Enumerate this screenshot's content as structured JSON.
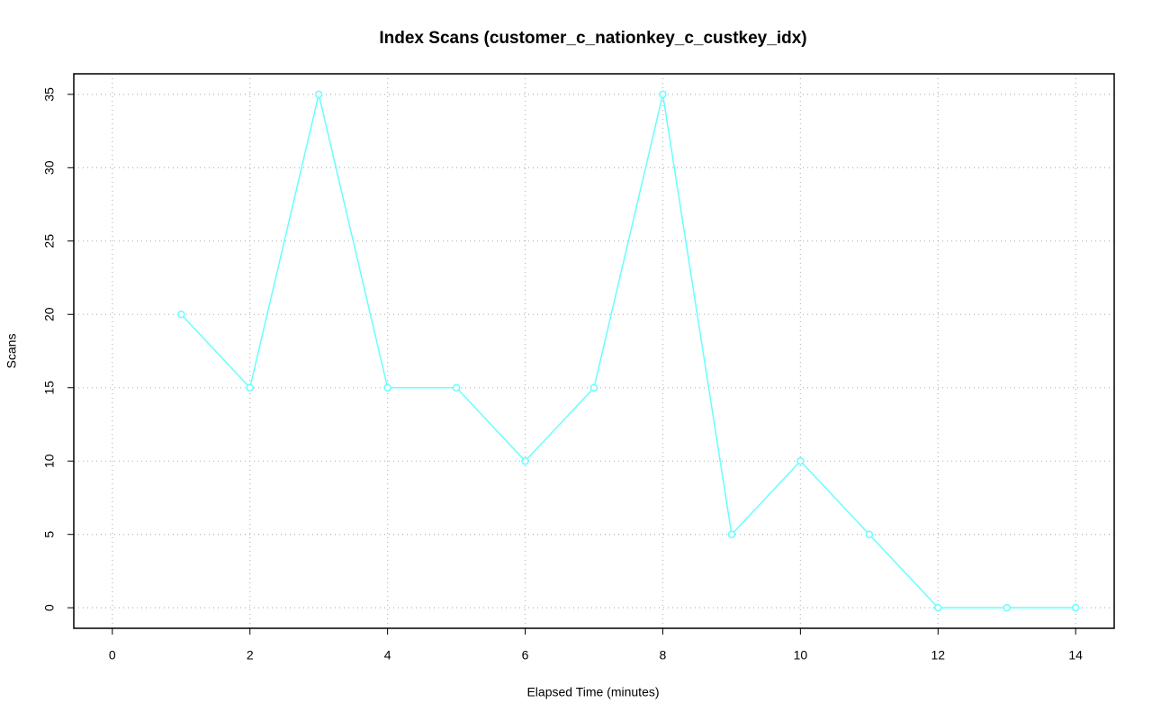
{
  "chart_data": {
    "type": "line",
    "title": "Index Scans (customer_c_nationkey_c_custkey_idx)",
    "x_label": "Elapsed Time (minutes)",
    "y_label": "Scans",
    "x": [
      1,
      2,
      3,
      4,
      5,
      6,
      7,
      8,
      9,
      10,
      11,
      12,
      13,
      14
    ],
    "series": [
      {
        "name": "Scans",
        "color": "#66ffff",
        "values": [
          20,
          15,
          35,
          15,
          15,
          10,
          15,
          35,
          5,
          10,
          5,
          0,
          0,
          0
        ]
      }
    ],
    "xlim": [
      -0.56,
      14.56
    ],
    "xticks": [
      0,
      2,
      4,
      6,
      8,
      10,
      12,
      14
    ],
    "ylim": [
      -1.4,
      36.4
    ],
    "yticks": [
      0,
      5,
      10,
      15,
      20,
      25,
      30,
      35
    ],
    "grid": true,
    "markers": true
  }
}
